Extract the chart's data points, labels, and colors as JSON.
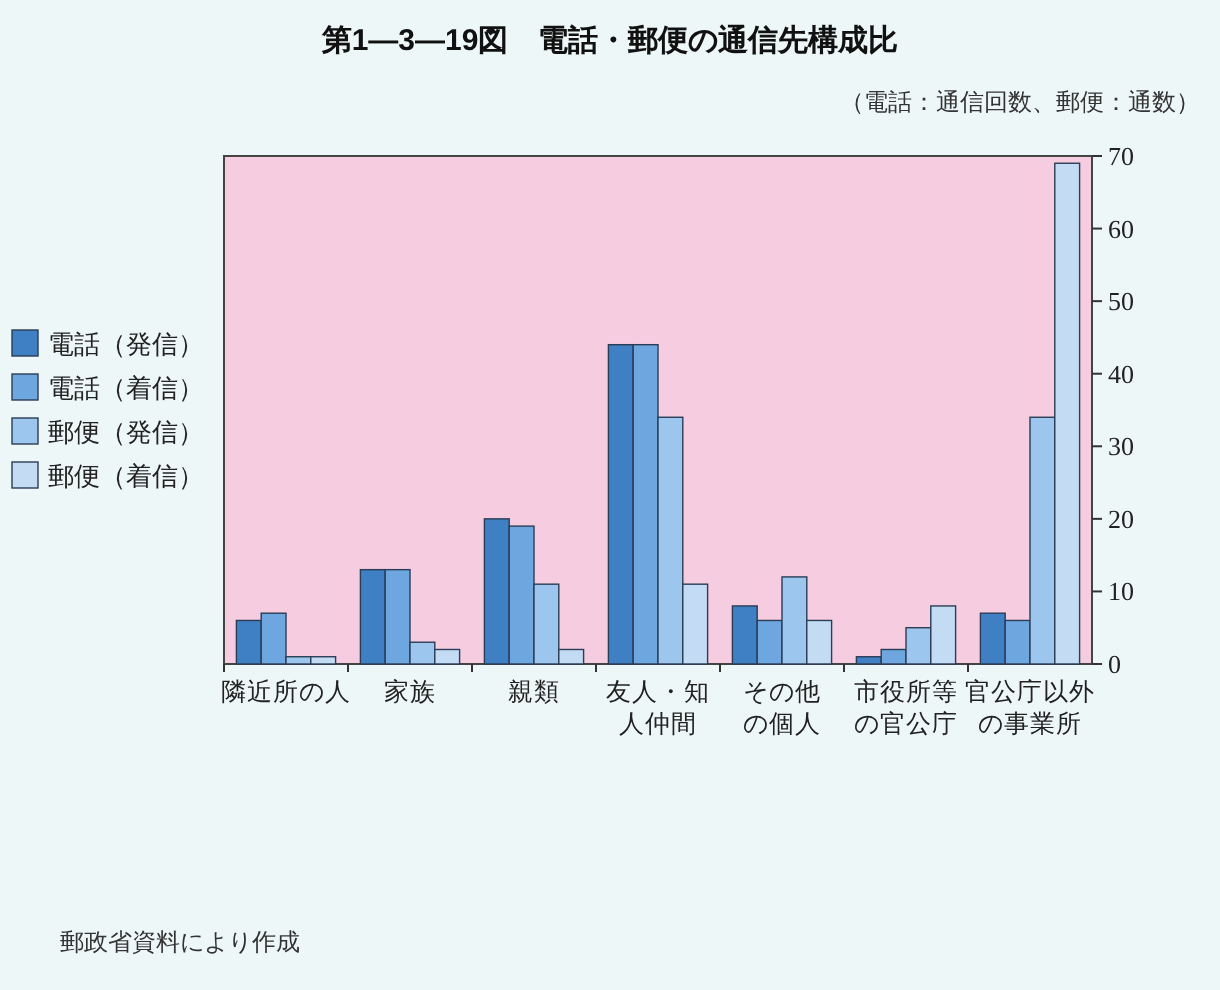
{
  "chart_data": {
    "type": "bar",
    "title": "第1—3—19図　電話・郵便の通信先構成比",
    "subtitle": "（電話：通信回数、郵便：通数）",
    "annotations": [
      "郵政省資料により作成"
    ],
    "categories": [
      "隣近所の人",
      "家族",
      "親類",
      "友人・知人仲間",
      "その他の個人",
      "市役所等の官公庁",
      "官公庁以外の事業所"
    ],
    "series": [
      {
        "name": "電話（発信）",
        "color": "#3f7fc4",
        "values": [
          6,
          13,
          20,
          44,
          8,
          1,
          7
        ]
      },
      {
        "name": "電話（着信）",
        "color": "#6ea7df",
        "values": [
          7,
          13,
          19,
          44,
          6,
          2,
          6
        ]
      },
      {
        "name": "郵便（発信）",
        "color": "#9dc6ee",
        "values": [
          1,
          3,
          11,
          34,
          12,
          5,
          34
        ]
      },
      {
        "name": "郵便（着信）",
        "color": "#c3dcf4",
        "values": [
          1,
          2,
          2,
          11,
          6,
          8,
          69
        ]
      }
    ],
    "ylim": [
      0,
      70
    ],
    "yticks": [
      0,
      10,
      20,
      30,
      40,
      50,
      60,
      70
    ],
    "legend": "left"
  }
}
